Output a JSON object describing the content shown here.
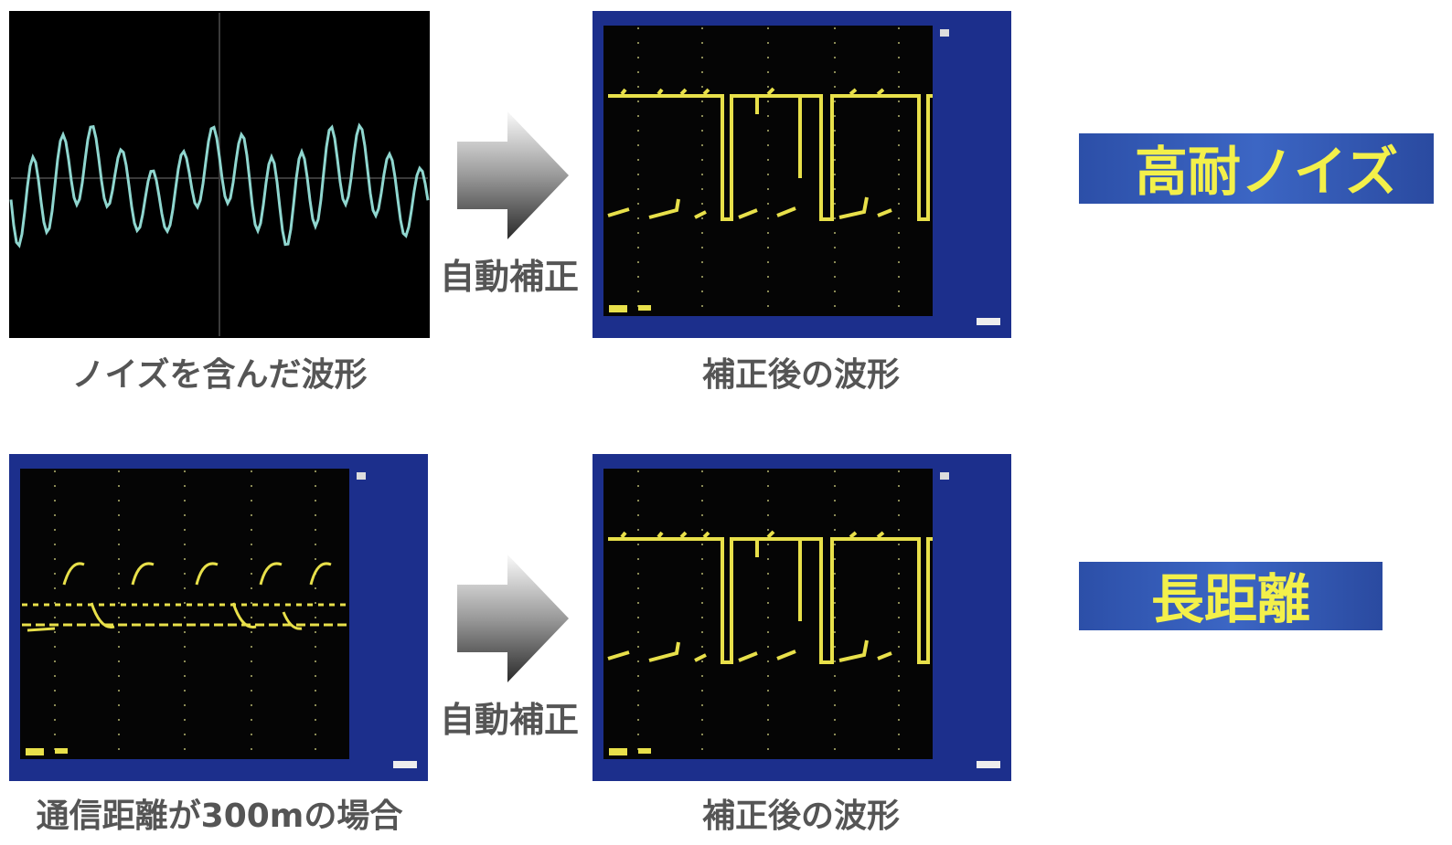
{
  "rows": [
    {
      "original_caption": "ノイズを含んだ波形",
      "correction_label": "自動補正",
      "corrected_caption": "補正後の波形",
      "badge": "高耐ノイズ"
    },
    {
      "original_caption": "通信距離が300mの場合",
      "correction_label": "自動補正",
      "corrected_caption": "補正後の波形",
      "badge": "長距離"
    }
  ]
}
